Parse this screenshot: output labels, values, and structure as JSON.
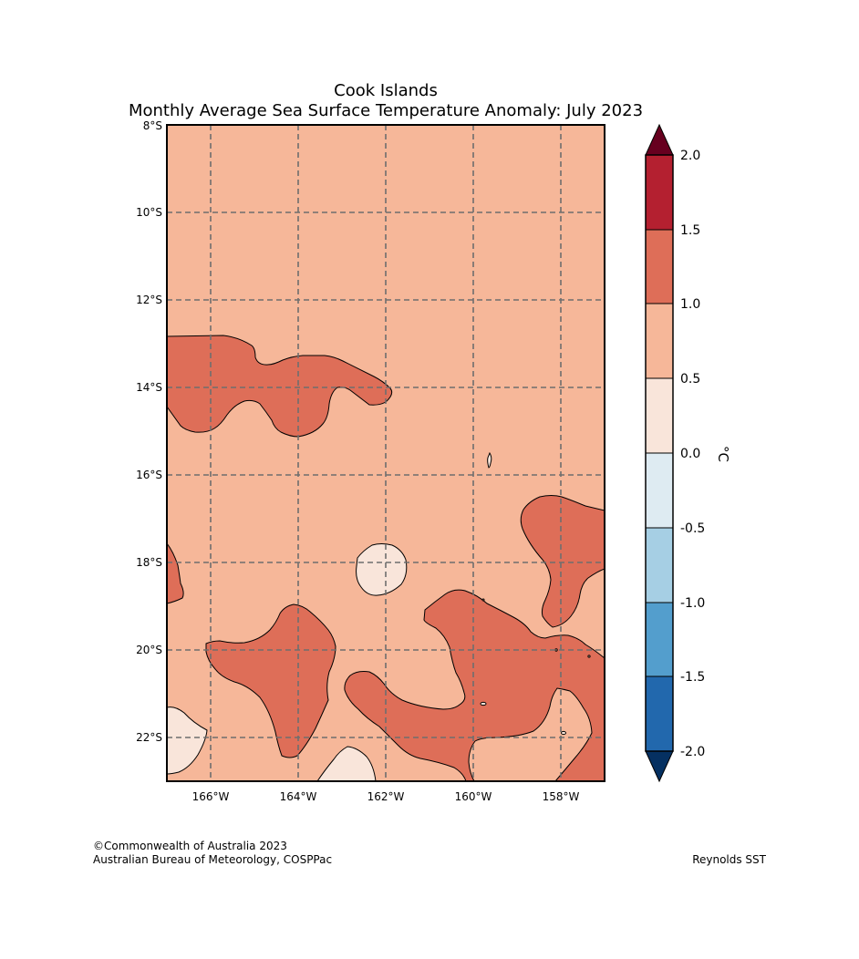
{
  "header": {
    "title_line1": "Cook Islands",
    "title_line2": "Monthly Average Sea Surface Temperature Anomaly: July 2023"
  },
  "map": {
    "lat_labels": [
      "8°S",
      "10°S",
      "12°S",
      "14°S",
      "16°S",
      "18°S",
      "20°S",
      "22°S"
    ],
    "lon_labels": [
      "166°W",
      "164°W",
      "162°W",
      "160°W",
      "158°W"
    ],
    "extent": {
      "lon_min": -167,
      "lon_max": -157,
      "lat_min": -23,
      "lat_max": -8
    },
    "background_color": "#f6b799"
  },
  "colorbar": {
    "unit": "°C",
    "ticks": [
      "2.0",
      "1.5",
      "1.0",
      "0.5",
      "0.0",
      "-0.5",
      "-1.0",
      "-1.5",
      "-2.0"
    ],
    "colors": {
      "above_max": "#67001f",
      "1.5_to_2.0": "#b42030",
      "1.0_to_1.5": "#de6e58",
      "0.5_to_1.0": "#f6b799",
      "0.0_to_0.5": "#f9e5da",
      "-0.5_to_0.0": "#deebf2",
      "-1.0_to_-0.5": "#a6cfe4",
      "-1.5_to_-1.0": "#539ecd",
      "-2.0_to_-1.5": "#2268ad",
      "below_min": "#053061"
    }
  },
  "footer": {
    "copyright": "©Commonwealth of Australia 2023",
    "agency": "Australian Bureau of Meteorology, COSPPac",
    "source": "Reynolds SST"
  }
}
